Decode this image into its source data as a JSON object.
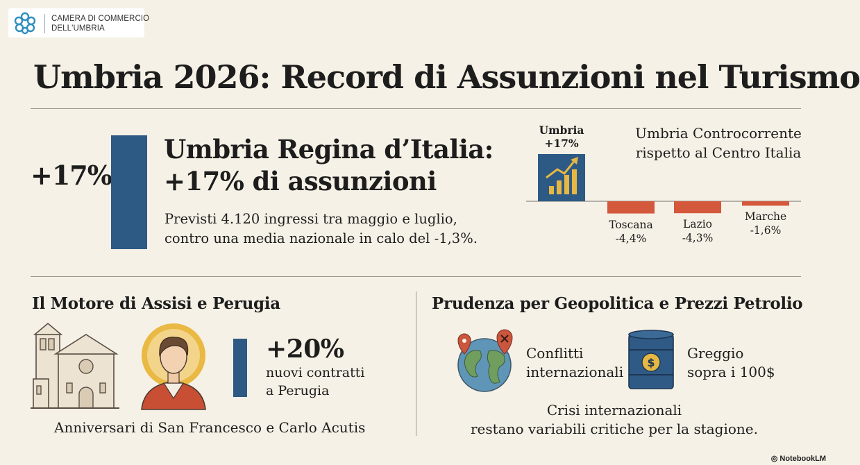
{
  "logo": {
    "line1": "CAMERA DI COMMERCIO",
    "line2": "DELL'UMBRIA"
  },
  "title": "Umbria 2026: Record di Assunzioni nel Turismo",
  "hero": {
    "big_percent": "+17%",
    "headline_line1": "Umbria Regina d’Italia:",
    "headline_line2": "+17% di assunzioni",
    "sub_line1": "Previsti 4.120 ingressi tra maggio e luglio,",
    "sub_line2": "contro una media nazionale in calo del -1,3%."
  },
  "chart_data": {
    "type": "bar",
    "title_line1": "Umbria Controcorrente",
    "title_line2": "rispetto al Centro Italia",
    "categories": [
      "Umbria",
      "Toscana",
      "Lazio",
      "Marche"
    ],
    "values": [
      17,
      -4.4,
      -4.3,
      -1.6
    ],
    "value_labels": [
      "+17%",
      "-4,4%",
      "-4,3%",
      "-1,6%"
    ],
    "colors": {
      "positive": "#2d5985",
      "negative": "#d4583b"
    },
    "icon": "growth-chart-icon"
  },
  "assisi": {
    "heading": "Il Motore di Assisi e Perugia",
    "stat": "+20%",
    "stat_line1": "nuovi contratti",
    "stat_line2": "a Perugia",
    "caption": "Anniversari di San Francesco e Carlo Acutis",
    "icons": [
      "basilica-icon",
      "saint-portrait-icon"
    ]
  },
  "geo": {
    "heading": "Prudenza per Geopolitica e Prezzi Petrolio",
    "item1_line1": "Conflitti",
    "item1_line2": "internazionali",
    "item2_line1": "Greggio",
    "item2_line2": "sopra i 100$",
    "crisi_line1": "Crisi internazionali",
    "crisi_line2": "restano variabili critiche per la stagione.",
    "icons": [
      "globe-icon",
      "oil-barrel-icon"
    ]
  },
  "footer": {
    "brand": "NotebookLM"
  }
}
